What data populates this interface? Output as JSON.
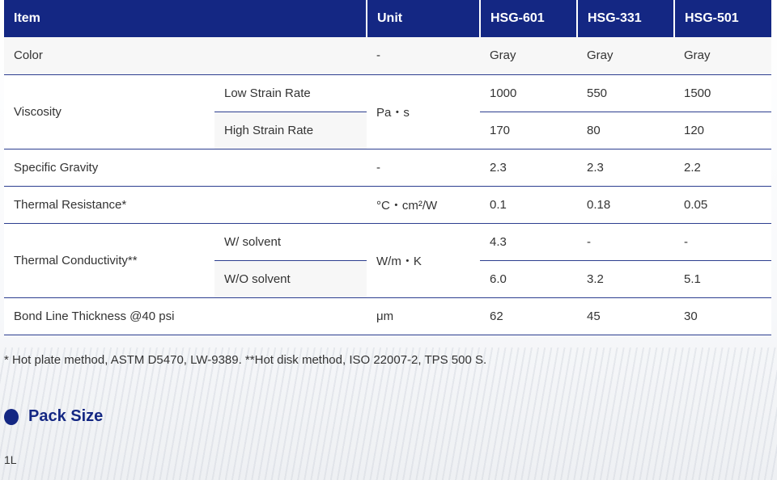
{
  "headers": [
    "Item",
    "Unit",
    "HSG-601",
    "HSG-331",
    "HSG-501"
  ],
  "rows": {
    "color": {
      "item": "Color",
      "unit": "-",
      "values": [
        "Gray",
        "Gray",
        "Gray"
      ]
    },
    "viscosity": {
      "item": "Viscosity",
      "unit": "Pa・s",
      "sub": [
        {
          "label": "Low Strain Rate",
          "values": [
            "1000",
            "550",
            "1500"
          ]
        },
        {
          "label": "High Strain Rate",
          "values": [
            "170",
            "80",
            "120"
          ]
        }
      ]
    },
    "gravity": {
      "item": "Specific Gravity",
      "unit": "-",
      "values": [
        "2.3",
        "2.3",
        "2.2"
      ]
    },
    "resistance": {
      "item": "Thermal Resistance*",
      "unit": "°C・cm²/W",
      "values": [
        "0.1",
        "0.18",
        "0.05"
      ]
    },
    "conductivity": {
      "item": "Thermal Conductivity**",
      "unit": "W/m・K",
      "sub": [
        {
          "label": "W/ solvent",
          "values": [
            "4.3",
            "-",
            "-"
          ]
        },
        {
          "label": "W/O solvent",
          "values": [
            "6.0",
            "3.2",
            "5.1"
          ]
        }
      ]
    },
    "blt": {
      "item": "Bond Line Thickness @40 psi",
      "unit": "μm",
      "values": [
        "62",
        "45",
        "30"
      ]
    }
  },
  "footnote": "* Hot plate method, ASTM D5470, LW-9389.  **Hot disk method, ISO 22007-2, TPS 500 S.",
  "pack": {
    "title": "Pack Size",
    "value": "1L"
  },
  "colors": {
    "header": "#142783"
  }
}
